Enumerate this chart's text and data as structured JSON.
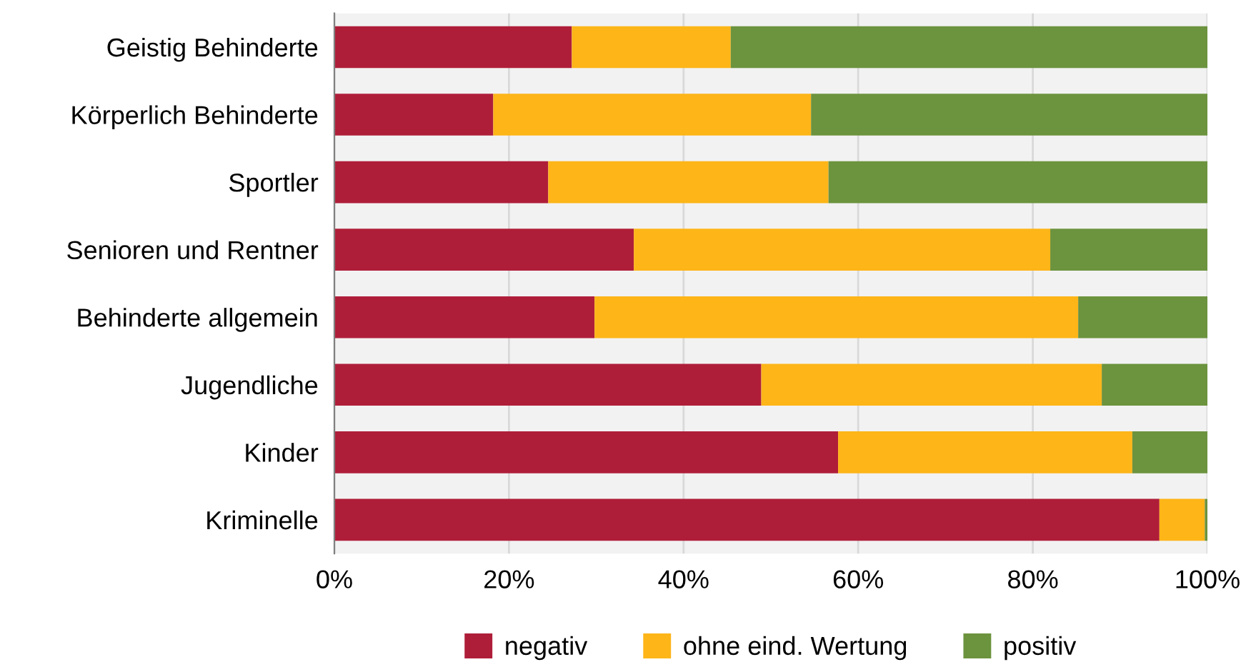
{
  "chart_data": {
    "type": "bar",
    "orientation": "horizontal",
    "stacked": true,
    "categories": [
      "Geistig Behinderte",
      "Körperlich Behinderte",
      "Sportler",
      "Senioren und Rentner",
      "Behinderte allgemein",
      "Jugendliche",
      "Kinder",
      "Kriminelle"
    ],
    "series": [
      {
        "name": "negativ",
        "color": "#af1e39",
        "values": [
          27.2,
          18.2,
          24.5,
          34.3,
          29.8,
          48.9,
          57.7,
          94.5
        ]
      },
      {
        "name": "ohne eind. Wertung",
        "color": "#fdb518",
        "values": [
          18.2,
          36.4,
          32.1,
          47.7,
          55.4,
          39.0,
          33.7,
          5.2
        ]
      },
      {
        "name": "positiv",
        "color": "#6c933e",
        "values": [
          54.6,
          45.4,
          43.4,
          18.0,
          14.8,
          12.1,
          8.6,
          0.3
        ]
      }
    ],
    "xlim": [
      0,
      100
    ],
    "xticks": [
      {
        "value": 0,
        "label": "0%"
      },
      {
        "value": 20,
        "label": "20%"
      },
      {
        "value": 40,
        "label": "40%"
      },
      {
        "value": 60,
        "label": "60%"
      },
      {
        "value": 80,
        "label": "80%"
      },
      {
        "value": 100,
        "label": "100%"
      }
    ],
    "grid": "x",
    "legend": "bottom"
  }
}
